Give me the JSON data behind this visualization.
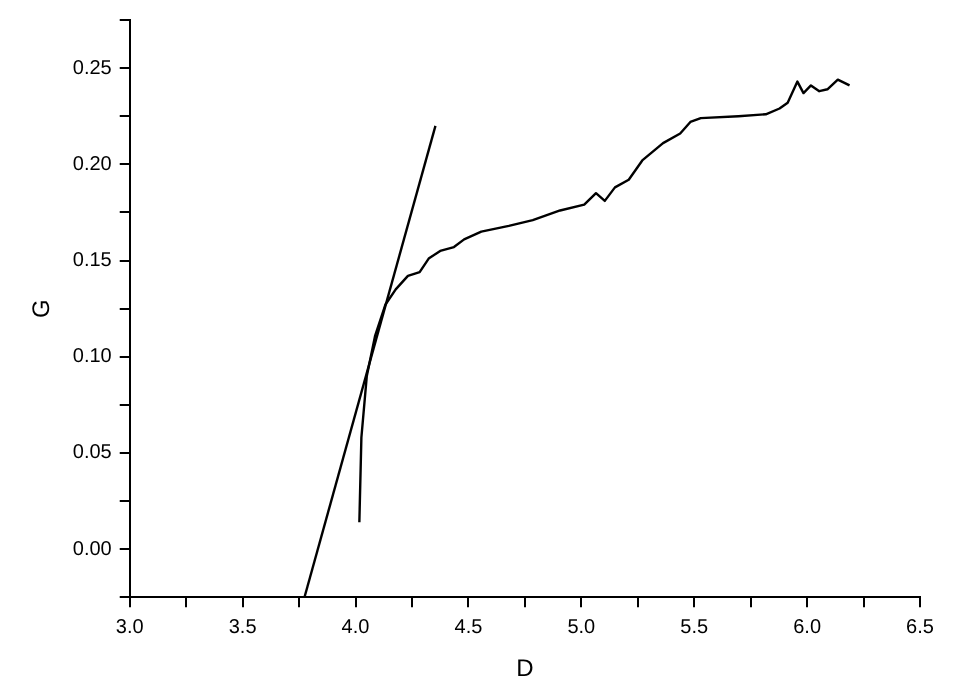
{
  "chart_data": {
    "type": "line",
    "xlabel": "D",
    "ylabel": "G",
    "xlim": [
      3.0,
      6.5
    ],
    "ylim": [
      -0.025,
      0.275
    ],
    "xticks": [
      {
        "value": 3.0,
        "label": "3.0"
      },
      {
        "value": 3.25,
        "label": null
      },
      {
        "value": 3.5,
        "label": "3.5"
      },
      {
        "value": 3.75,
        "label": null
      },
      {
        "value": 4.0,
        "label": "4.0"
      },
      {
        "value": 4.25,
        "label": null
      },
      {
        "value": 4.5,
        "label": "4.5"
      },
      {
        "value": 4.75,
        "label": null
      },
      {
        "value": 5.0,
        "label": "5.0"
      },
      {
        "value": 5.25,
        "label": null
      },
      {
        "value": 5.5,
        "label": "5.5"
      },
      {
        "value": 5.75,
        "label": null
      },
      {
        "value": 6.0,
        "label": "6.0"
      },
      {
        "value": 6.25,
        "label": null
      },
      {
        "value": 6.5,
        "label": "6.5"
      }
    ],
    "yticks": [
      {
        "value": -0.025,
        "label": null
      },
      {
        "value": 0,
        "label": "0.00"
      },
      {
        "value": 0.025,
        "label": null
      },
      {
        "value": 0.05,
        "label": "0.05"
      },
      {
        "value": 0.075,
        "label": null
      },
      {
        "value": 0.1,
        "label": "0.10"
      },
      {
        "value": 0.125,
        "label": null
      },
      {
        "value": 0.15,
        "label": "0.15"
      },
      {
        "value": 0.175,
        "label": null
      },
      {
        "value": 0.2,
        "label": "0.20"
      },
      {
        "value": 0.225,
        "label": null
      },
      {
        "value": 0.25,
        "label": "0.25"
      },
      {
        "value": 0.275,
        "label": null
      }
    ],
    "grid": false,
    "legend": false,
    "marker": "none",
    "line_style": "solid",
    "series": [
      {
        "type": "line",
        "color": "#000000",
        "x": [
          4.017,
          4.026,
          4.05,
          4.087,
          4.132,
          4.178,
          4.232,
          4.284,
          4.324,
          4.375,
          4.436,
          4.481,
          4.557,
          4.679,
          4.785,
          4.906,
          5.013,
          5.065,
          5.104,
          5.149,
          5.21,
          5.27,
          5.362,
          5.438,
          5.483,
          5.529,
          5.696,
          5.817,
          5.878,
          5.914,
          5.957,
          5.984,
          6.017,
          6.054,
          6.09,
          6.136,
          6.188
        ],
        "values": [
          0.014,
          0.058,
          0.09,
          0.111,
          0.127,
          0.135,
          0.142,
          0.144,
          0.151,
          0.155,
          0.157,
          0.161,
          0.165,
          0.168,
          0.171,
          0.176,
          0.179,
          0.185,
          0.181,
          0.188,
          0.192,
          0.202,
          0.211,
          0.216,
          0.222,
          0.224,
          0.225,
          0.226,
          0.229,
          0.232,
          0.243,
          0.237,
          0.241,
          0.238,
          0.239,
          0.244,
          0.241
        ]
      },
      {
        "type": "line",
        "color": "#000000",
        "x": [
          3.774,
          4.354
        ],
        "values": [
          -0.025,
          0.22
        ]
      }
    ]
  }
}
